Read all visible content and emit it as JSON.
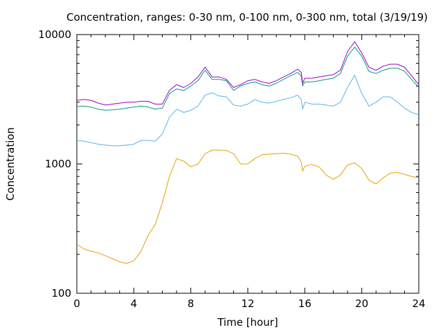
{
  "chart_data": {
    "type": "line",
    "title": "Concentration, ranges: 0-30 nm, 0-100 nm, 0-300 nm, total (3/19/19)",
    "xlabel": "Time [hour]",
    "ylabel": "Concentration",
    "xlim": [
      0,
      24
    ],
    "ylim": [
      100,
      10000
    ],
    "yscale": "log",
    "xticks": [
      "0",
      "4",
      "8",
      "12",
      "16",
      "20",
      "24"
    ],
    "yticks": [
      "100",
      "1000",
      "10000"
    ],
    "grid": false,
    "legend": "none",
    "series": [
      {
        "color": "#e5a000",
        "x": [
          0,
          0.5,
          1,
          1.5,
          2,
          2.5,
          3,
          3.5,
          4,
          4.5,
          5,
          5.5,
          6,
          6.5,
          7,
          7.5,
          8,
          8.5,
          9,
          9.5,
          10,
          10.5,
          11,
          11.5,
          12,
          12.5,
          13,
          13.5,
          14,
          14.5,
          15,
          15.5,
          15.75,
          15.85,
          16,
          16.5,
          17,
          17.5,
          18,
          18.5,
          19,
          19.5,
          20,
          20.5,
          21,
          21.5,
          22,
          22.5,
          23,
          23.5,
          24
        ],
        "values": [
          240,
          220,
          212,
          205,
          195,
          185,
          175,
          170,
          178,
          210,
          280,
          340,
          500,
          800,
          1100,
          1050,
          950,
          1000,
          1200,
          1280,
          1280,
          1270,
          1200,
          1000,
          1000,
          1100,
          1180,
          1190,
          1200,
          1210,
          1190,
          1150,
          1030,
          880,
          960,
          990,
          950,
          820,
          760,
          820,
          980,
          1020,
          920,
          750,
          700,
          780,
          850,
          860,
          830,
          800,
          780
        ]
      },
      {
        "color": "#56b4e9",
        "x": [
          0,
          0.5,
          1,
          1.5,
          2,
          2.5,
          3,
          3.5,
          4,
          4.5,
          5,
          5.5,
          6,
          6.5,
          7,
          7.5,
          8,
          8.5,
          9,
          9.5,
          10,
          10.5,
          11,
          11.5,
          12,
          12.5,
          13,
          13.5,
          14,
          14.5,
          15,
          15.5,
          15.75,
          15.85,
          16,
          16.5,
          17,
          17.5,
          18,
          18.5,
          19,
          19.5,
          20,
          20.5,
          21,
          21.5,
          22,
          22.5,
          23,
          23.5,
          24
        ],
        "values": [
          1520,
          1500,
          1460,
          1420,
          1400,
          1380,
          1380,
          1400,
          1420,
          1520,
          1520,
          1500,
          1700,
          2300,
          2650,
          2500,
          2600,
          2800,
          3400,
          3550,
          3350,
          3300,
          2850,
          2800,
          2900,
          3150,
          3000,
          2950,
          3050,
          3150,
          3250,
          3400,
          3150,
          2650,
          3000,
          2900,
          2900,
          2850,
          2800,
          3000,
          3900,
          4850,
          3500,
          2800,
          3000,
          3300,
          3300,
          3000,
          2700,
          2500,
          2400
        ]
      },
      {
        "color": "#009e73",
        "x": [
          0,
          0.5,
          1,
          1.5,
          2,
          2.5,
          3,
          3.5,
          4,
          4.5,
          5,
          5.5,
          6,
          6.5,
          7,
          7.5,
          8,
          8.5,
          9,
          9.5,
          10,
          10.5,
          11,
          11.5,
          12,
          12.5,
          13,
          13.5,
          14,
          14.5,
          15,
          15.5,
          15.75,
          15.85,
          16,
          16.5,
          17,
          17.5,
          18,
          18.5,
          19,
          19.5,
          20,
          20.5,
          21,
          21.5,
          22,
          22.5,
          23,
          23.5,
          24
        ],
        "values": [
          2780,
          2800,
          2750,
          2650,
          2600,
          2620,
          2650,
          2700,
          2750,
          2800,
          2750,
          2650,
          2700,
          3500,
          3800,
          3700,
          4000,
          4400,
          5300,
          4500,
          4500,
          4400,
          3700,
          4000,
          4200,
          4300,
          4100,
          4000,
          4200,
          4500,
          4800,
          5100,
          4800,
          4000,
          4300,
          4300,
          4400,
          4500,
          4600,
          5000,
          6800,
          8000,
          6800,
          5200,
          5000,
          5300,
          5500,
          5500,
          5200,
          4500,
          3900
        ]
      },
      {
        "color": "#9400d3",
        "x": [
          0,
          0.5,
          1,
          1.5,
          2,
          2.5,
          3,
          3.5,
          4,
          4.5,
          5,
          5.5,
          6,
          6.5,
          7,
          7.5,
          8,
          8.5,
          9,
          9.5,
          10,
          10.5,
          11,
          11.5,
          12,
          12.5,
          13,
          13.5,
          14,
          14.5,
          15,
          15.5,
          15.75,
          15.85,
          16,
          16.5,
          17,
          17.5,
          18,
          18.5,
          19,
          19.5,
          20,
          20.5,
          21,
          21.5,
          22,
          22.5,
          23,
          23.5,
          24
        ],
        "values": [
          3100,
          3150,
          3100,
          2950,
          2850,
          2900,
          2950,
          3000,
          3000,
          3050,
          3050,
          2900,
          2900,
          3700,
          4100,
          3900,
          4200,
          4700,
          5600,
          4700,
          4700,
          4500,
          3900,
          4100,
          4400,
          4500,
          4300,
          4200,
          4400,
          4700,
          5000,
          5400,
          5100,
          4200,
          4600,
          4600,
          4700,
          4800,
          4900,
          5300,
          7400,
          8800,
          7200,
          5600,
          5300,
          5700,
          5900,
          5900,
          5600,
          4800,
          4100
        ]
      }
    ]
  }
}
